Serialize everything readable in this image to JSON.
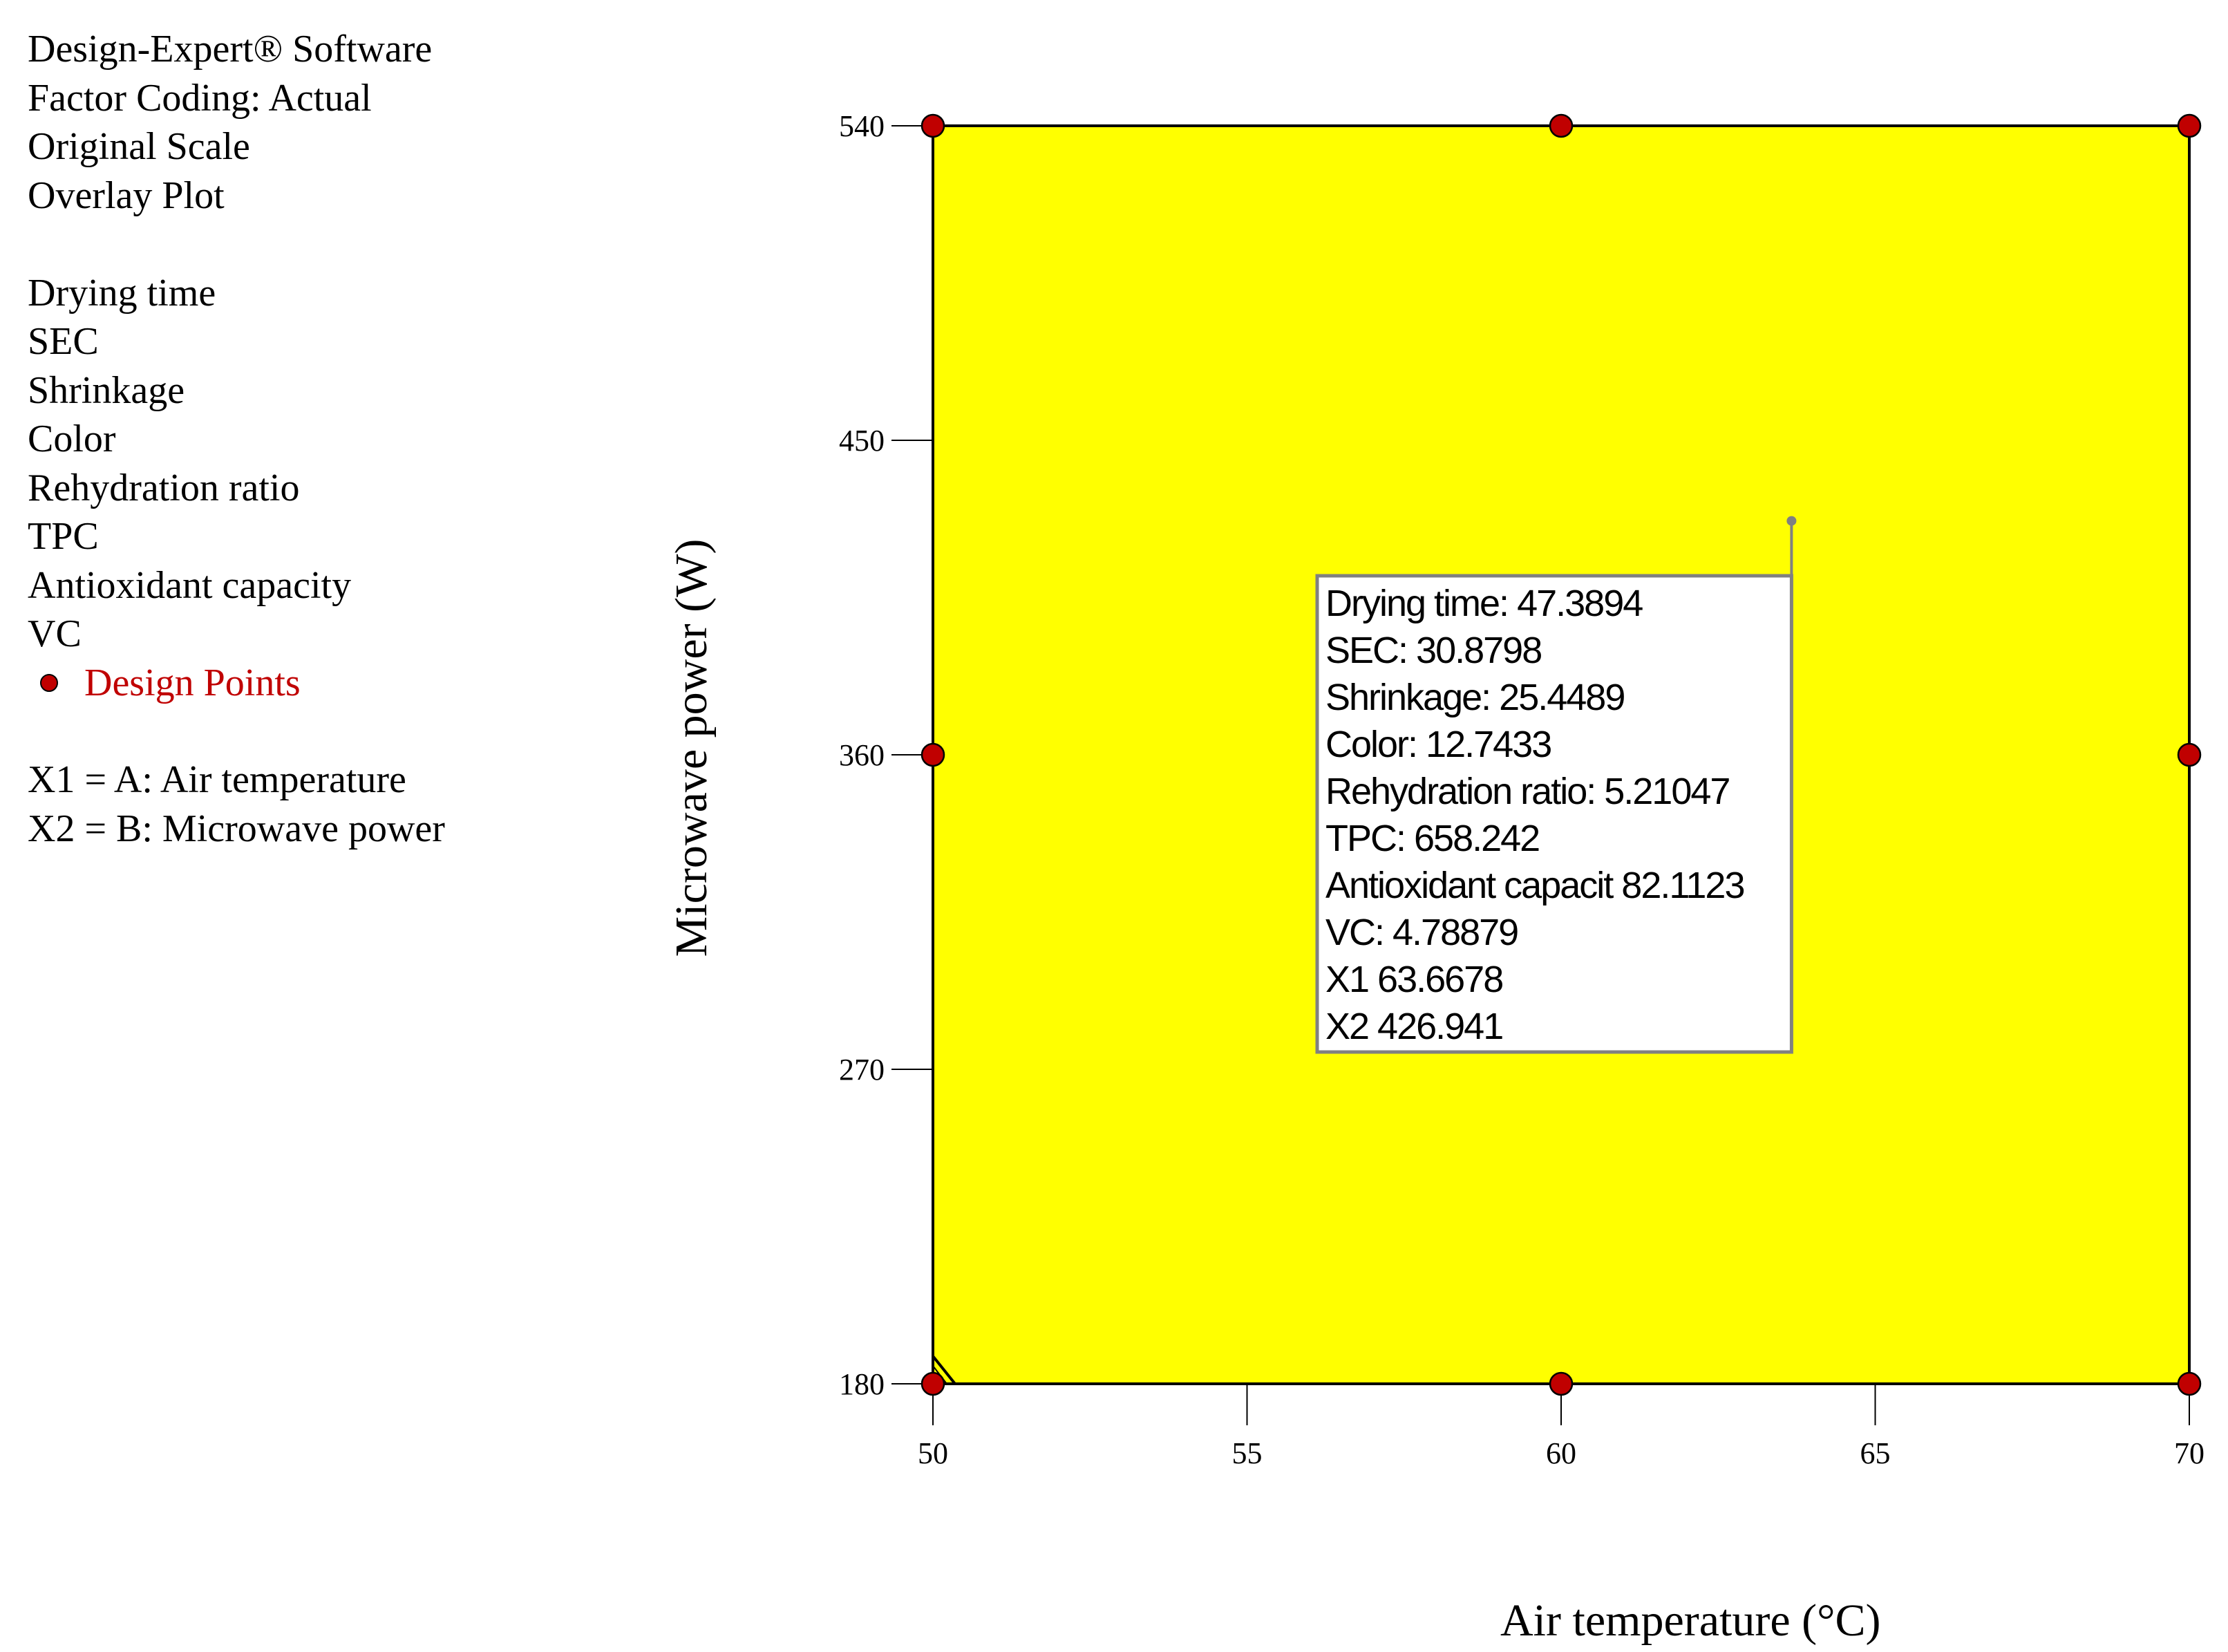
{
  "header": {
    "lines": [
      "Design-Expert® Software",
      "Factor Coding: Actual",
      "Original Scale",
      "Overlay Plot"
    ]
  },
  "responses": [
    "Drying time",
    "SEC",
    "Shrinkage",
    "Color",
    "Rehydration ratio",
    "TPC",
    "Antioxidant capacity",
    "VC"
  ],
  "legend": {
    "design_points_label": "Design Points",
    "design_points_color": "#c00000"
  },
  "factors": [
    "X1 = A: Air temperature",
    "X2 = B: Microwave power"
  ],
  "colors": {
    "feasible_region": "#ffff00",
    "design_point": "#c00000",
    "flag_border": "#808080"
  },
  "chart_data": {
    "type": "scatter",
    "title": "",
    "xlabel": "Air temperature (°C)",
    "ylabel": "Microwave power (W)",
    "xlim": [
      50,
      70
    ],
    "ylim": [
      180,
      540
    ],
    "x_ticks": [
      50,
      55,
      60,
      65,
      70
    ],
    "y_ticks": [
      180,
      270,
      360,
      450,
      540
    ],
    "grid": false,
    "region_fill": "#ffff00",
    "series": [
      {
        "name": "Design Points",
        "points": [
          {
            "x": 50,
            "y": 540
          },
          {
            "x": 60,
            "y": 540
          },
          {
            "x": 70,
            "y": 540
          },
          {
            "x": 50,
            "y": 360
          },
          {
            "x": 70,
            "y": 360
          },
          {
            "x": 50,
            "y": 180
          },
          {
            "x": 60,
            "y": 180
          },
          {
            "x": 70,
            "y": 180
          }
        ]
      }
    ],
    "flag": {
      "x": 63.6678,
      "y": 426.941,
      "lines": [
        "Drying time:   47.3894",
        "SEC:   30.8798",
        "Shrinkage:   25.4489",
        "Color:   12.7433",
        "Rehydration ratio:   5.21047",
        "TPC:   658.242",
        "Antioxidant capacit  82.1123",
        "VC:   4.78879",
        "X1  63.6678",
        "X2  426.941"
      ]
    }
  }
}
